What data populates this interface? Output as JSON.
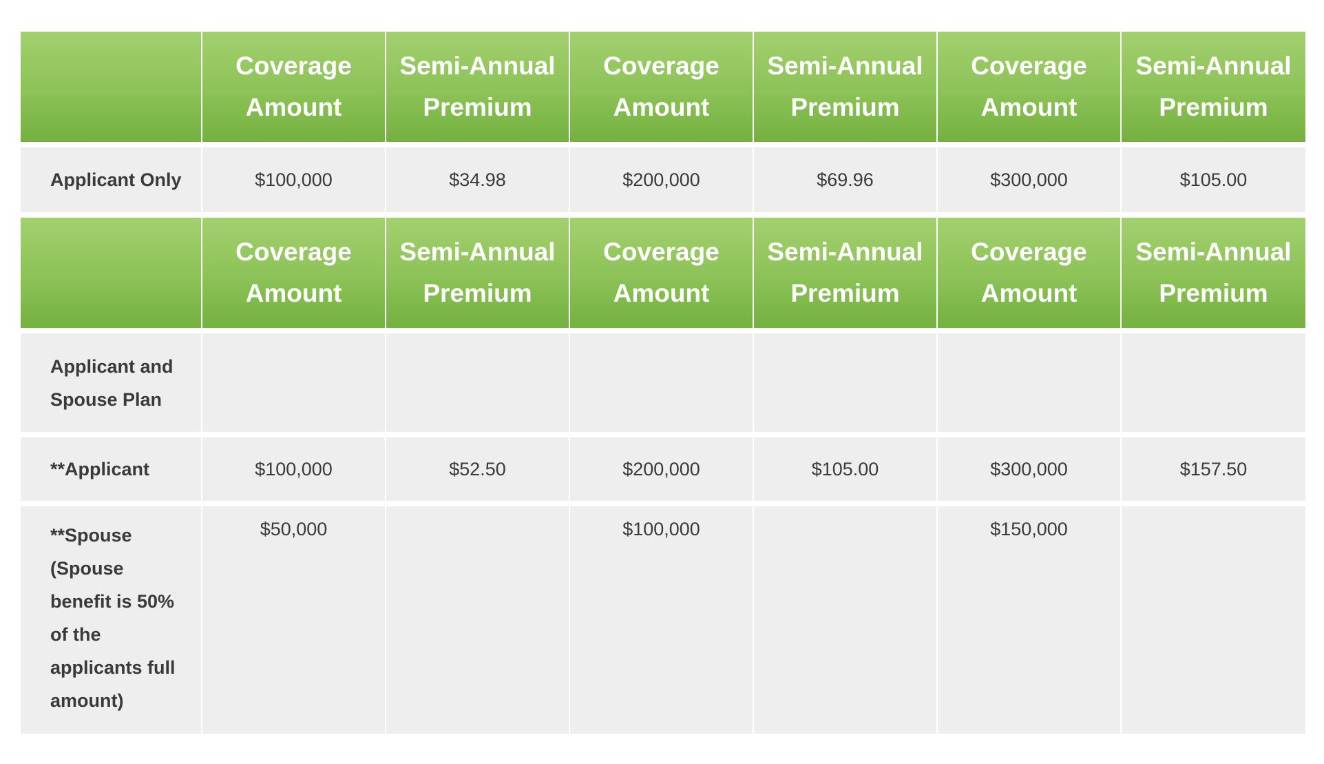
{
  "header_labels": {
    "coverage_line1": "Coverage",
    "coverage_line2": "Amount",
    "premium_line1": "Semi-Annual",
    "premium_line2": "Premium"
  },
  "applicant_only": {
    "label": "Applicant Only",
    "values": [
      "$100,000",
      "$34.98",
      "$200,000",
      "$69.96",
      "$300,000",
      "$105.00"
    ]
  },
  "spouse_plan": {
    "label": "Applicant and Spouse Plan"
  },
  "applicant": {
    "label": "**Applicant",
    "values": [
      "$100,000",
      "$52.50",
      "$200,000",
      "$105.00",
      "$300,000",
      "$157.50"
    ]
  },
  "spouse": {
    "label": "**Spouse (Spouse benefit is 50% of the applicants full amount)",
    "values": [
      "$50,000",
      "",
      "$100,000",
      "",
      "$150,000",
      ""
    ]
  }
}
